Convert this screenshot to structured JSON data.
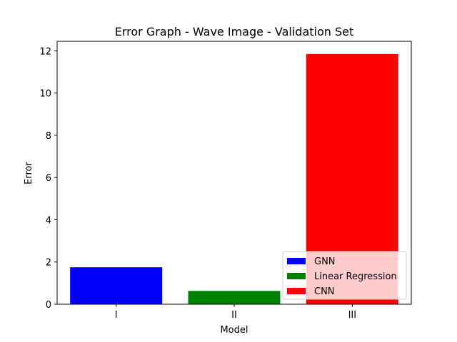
{
  "chart_data": {
    "type": "bar",
    "title": "Error Graph - Wave Image - Validation Set",
    "xlabel": "Model",
    "ylabel": "Error",
    "categories": [
      "I",
      "II",
      "III"
    ],
    "series": [
      {
        "name": "GNN",
        "category": "I",
        "value": 1.75,
        "color": "#0000ff"
      },
      {
        "name": "Linear Regression",
        "category": "II",
        "value": 0.63,
        "color": "#008000"
      },
      {
        "name": "CNN",
        "category": "III",
        "value": 11.85,
        "color": "#ff0000"
      }
    ],
    "ylim": [
      0,
      12.45
    ],
    "yticks": [
      "0",
      "2",
      "4",
      "6",
      "8",
      "10",
      "12"
    ],
    "grid": false,
    "legend_position": "lower-right"
  }
}
